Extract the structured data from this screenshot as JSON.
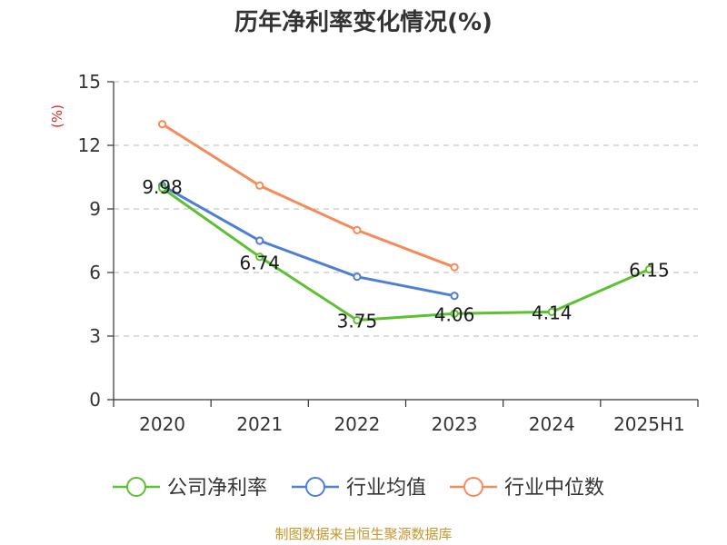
{
  "title": "历年净利率变化情况(%)",
  "source": "制图数据来自恒生聚源数据库",
  "chart_data": {
    "type": "line",
    "title": "历年净利率变化情况(%)",
    "ylabel": "(%)",
    "xlabel": "",
    "categories": [
      "2020",
      "2021",
      "2022",
      "2023",
      "2024",
      "2025H1"
    ],
    "yticks": [
      0,
      3,
      6,
      9,
      12,
      15
    ],
    "ylim": [
      0,
      15
    ],
    "grid": true,
    "legend_position": "bottom",
    "series": [
      {
        "name": "公司净利率",
        "color": "#5cc130",
        "values": [
          9.98,
          6.74,
          3.75,
          4.06,
          4.14,
          6.15
        ],
        "labels": [
          "9.98",
          "6.74",
          "3.75",
          "4.06",
          "4.14",
          "6.15"
        ]
      },
      {
        "name": "行业均值",
        "color": "#4e7fd7",
        "values": [
          10.1,
          7.5,
          5.8,
          4.9,
          null,
          null
        ]
      },
      {
        "name": "行业中位数",
        "color": "#f78a5a",
        "values": [
          13.0,
          10.1,
          8.0,
          6.25,
          null,
          null
        ]
      }
    ]
  }
}
